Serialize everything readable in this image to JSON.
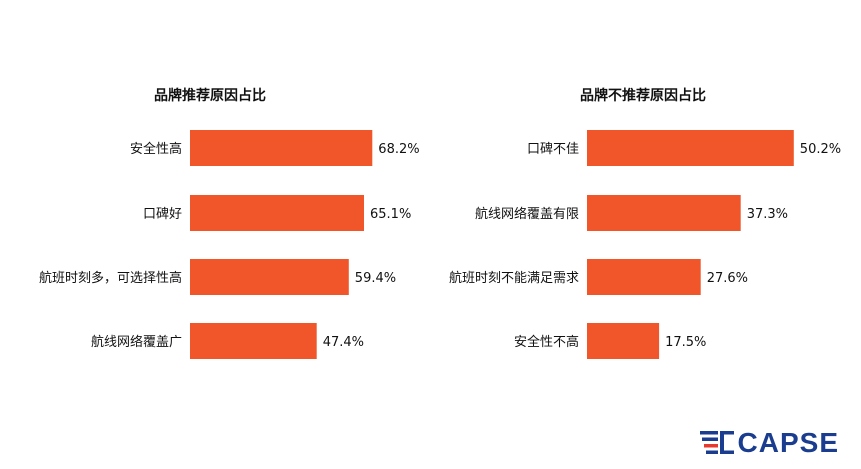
{
  "chart_data": [
    {
      "type": "bar",
      "orientation": "horizontal",
      "title": "品牌推荐原因占比",
      "categories": [
        "安全性高",
        "口碑好",
        "航班时刻多，可选择性高",
        "航线网络覆盖广"
      ],
      "values": [
        68.2,
        65.1,
        59.4,
        47.4
      ],
      "value_labels": [
        "68.2%",
        "65.1%",
        "59.4%",
        "47.4%"
      ],
      "unit": "%",
      "xlim": [
        0,
        100
      ],
      "grid": false,
      "legend": "none",
      "bar_color": "#f0562a"
    },
    {
      "type": "bar",
      "orientation": "horizontal",
      "title": "品牌不推荐原因占比",
      "categories": [
        "口碑不佳",
        "航线网络覆盖有限",
        "航班时刻不能满足需求",
        "安全性不高"
      ],
      "values": [
        50.2,
        37.3,
        27.6,
        17.5
      ],
      "value_labels": [
        "50.2%",
        "37.3%",
        "27.6%",
        "17.5%"
      ],
      "unit": "%",
      "xlim": [
        0,
        75
      ],
      "grid": false,
      "legend": "none",
      "bar_color": "#f0562a"
    }
  ],
  "logo": {
    "text": "CAPSE",
    "colors": {
      "primary": "#1a3d8f",
      "accent": "#e63a2e"
    }
  }
}
